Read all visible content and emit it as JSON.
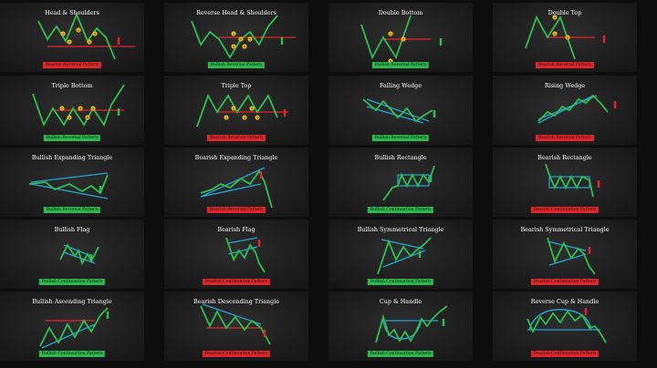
{
  "colors": {
    "line": "#2fbf4f",
    "resistance": "#e0262b",
    "support": "#23a6d5",
    "marker": "#f0b81c",
    "bull_badge": "#2db84d",
    "bear_badge": "#e0262b"
  },
  "patterns": [
    {
      "title": "Head & Shoulders",
      "badge": "Bearish Reversal Pattern",
      "bias": "bear",
      "markers": [
        "1",
        "2",
        "3",
        "4",
        "5"
      ]
    },
    {
      "title": "Reverse Head & Shoulders",
      "badge": "Bullish Reversal Pattern",
      "bias": "bull",
      "markers": [
        "1",
        "2",
        "3",
        "4",
        "5"
      ]
    },
    {
      "title": "Double Bottom",
      "badge": "Bullish Reversal Pattern",
      "bias": "bull",
      "markers": [
        "1",
        "2",
        "3"
      ]
    },
    {
      "title": "Double Top",
      "badge": "Bearish Reversal Pattern",
      "bias": "bear",
      "markers": [
        "1",
        "2",
        "3"
      ]
    },
    {
      "title": "Triple Bottom",
      "badge": "Bullish Reversal Pattern",
      "bias": "bull",
      "markers": [
        "1",
        "2",
        "3",
        "4",
        "5"
      ]
    },
    {
      "title": "Triple Top",
      "badge": "Bearish Reversal Pattern",
      "bias": "bear",
      "markers": [
        "1",
        "2",
        "3",
        "4",
        "5"
      ]
    },
    {
      "title": "Falling Wedge",
      "badge": "Bullish Reversal Pattern",
      "bias": "bull",
      "markers": []
    },
    {
      "title": "Rising Wedge",
      "badge": "Bearish Reversal Pattern",
      "bias": "bear",
      "markers": []
    },
    {
      "title": "Bullish Expanding Triangle",
      "badge": "Bullish Reversal Pattern",
      "bias": "bull",
      "markers": []
    },
    {
      "title": "Bearish Expanding Triangle",
      "badge": "Bearish Reversal Pattern",
      "bias": "bear",
      "markers": []
    },
    {
      "title": "Bullish Rectangle",
      "badge": "Bullish Continuation Pattern",
      "bias": "bull",
      "markers": []
    },
    {
      "title": "Bearish Rectangle",
      "badge": "Bearish Continuation Pattern",
      "bias": "bear",
      "markers": []
    },
    {
      "title": "Bullish Flag",
      "badge": "Bullish Continuation Pattern",
      "bias": "bull",
      "markers": []
    },
    {
      "title": "Bearish Flag",
      "badge": "Bearish Continuation Pattern",
      "bias": "bear",
      "markers": []
    },
    {
      "title": "Bullish Symmetrical Triangle",
      "badge": "Bullish Continuation Pattern",
      "bias": "bull",
      "markers": []
    },
    {
      "title": "Bearish Symmetrical Triangle",
      "badge": "Bearish Continuation Pattern",
      "bias": "bear",
      "markers": []
    },
    {
      "title": "Bullish Ascending Triangle",
      "badge": "Bullish Continuation Pattern",
      "bias": "bull",
      "markers": []
    },
    {
      "title": "Bearish Descending Triangle",
      "badge": "Bearish Continuation Pattern",
      "bias": "bear",
      "markers": []
    },
    {
      "title": "Cup & Handle",
      "badge": "Bullish Continuation Pattern",
      "bias": "bull",
      "markers": []
    },
    {
      "title": "Reverse Cup & Handle",
      "badge": "Bearish Continuation Pattern",
      "bias": "bear",
      "markers": []
    }
  ]
}
